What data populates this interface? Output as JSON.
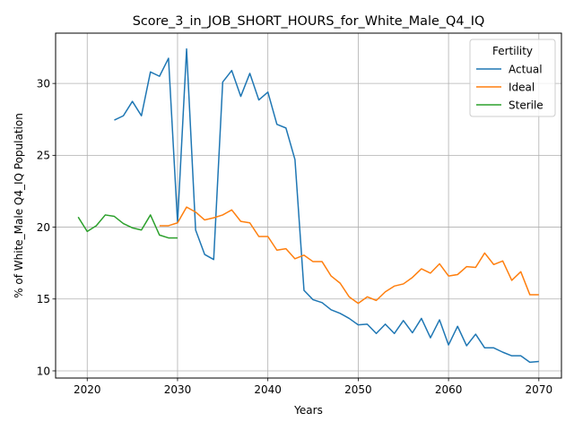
{
  "chart_data": {
    "type": "line",
    "title": "Score_3_in_JOB_SHORT_HOURS_for_White_Male_Q4_IQ",
    "xlabel": "Years",
    "ylabel": "% of White_Male Q4_IQ Population",
    "xlim": [
      2016.5,
      2072.5
    ],
    "ylim": [
      9.5,
      33.5
    ],
    "xticks": [
      2020,
      2030,
      2040,
      2050,
      2060,
      2070
    ],
    "yticks": [
      10,
      15,
      20,
      25,
      30
    ],
    "grid": true,
    "legend": {
      "title": "Fertility",
      "position": "top-right"
    },
    "series": [
      {
        "name": "Actual",
        "color": "#1f77b4",
        "x": [
          2023,
          2024,
          2025,
          2026,
          2027,
          2028,
          2029,
          2030,
          2031,
          2032,
          2033,
          2034,
          2035,
          2036,
          2037,
          2038,
          2039,
          2040,
          2041,
          2042,
          2043,
          2044,
          2045,
          2046,
          2047,
          2048,
          2049,
          2050,
          2051,
          2052,
          2053,
          2054,
          2055,
          2056,
          2057,
          2058,
          2059,
          2060,
          2061,
          2062,
          2063,
          2064,
          2065,
          2066,
          2067,
          2068,
          2069,
          2070
        ],
        "y": [
          27.45,
          27.75,
          28.75,
          27.75,
          30.8,
          30.5,
          31.75,
          20.3,
          32.4,
          19.8,
          18.1,
          17.75,
          30.1,
          30.9,
          29.1,
          30.7,
          28.85,
          29.4,
          27.15,
          26.9,
          24.7,
          15.6,
          14.95,
          14.75,
          14.25,
          14.0,
          13.65,
          13.2,
          13.25,
          12.6,
          13.25,
          12.6,
          13.5,
          12.65,
          13.65,
          12.3,
          13.55,
          11.8,
          13.1,
          11.75,
          12.55,
          11.6,
          11.6,
          11.3,
          11.05,
          11.05,
          10.6,
          10.65
        ]
      },
      {
        "name": "Ideal",
        "color": "#ff7f0e",
        "x": [
          2028,
          2029,
          2030,
          2031,
          2032,
          2033,
          2034,
          2035,
          2036,
          2037,
          2038,
          2039,
          2040,
          2041,
          2042,
          2043,
          2044,
          2045,
          2046,
          2047,
          2048,
          2049,
          2050,
          2051,
          2052,
          2053,
          2054,
          2055,
          2056,
          2057,
          2058,
          2059,
          2060,
          2061,
          2062,
          2063,
          2064,
          2065,
          2066,
          2067,
          2068,
          2069,
          2070
        ],
        "y": [
          20.1,
          20.1,
          20.3,
          21.4,
          21.05,
          20.5,
          20.65,
          20.85,
          21.2,
          20.4,
          20.3,
          19.35,
          19.35,
          18.4,
          18.5,
          17.8,
          18.05,
          17.6,
          17.6,
          16.6,
          16.1,
          15.15,
          14.7,
          15.15,
          14.9,
          15.5,
          15.9,
          16.05,
          16.5,
          17.1,
          16.8,
          17.45,
          16.6,
          16.7,
          17.25,
          17.2,
          18.2,
          17.4,
          17.65,
          16.3,
          16.9,
          15.3,
          15.3
        ]
      },
      {
        "name": "Sterile",
        "color": "#2ca02c",
        "x": [
          2019,
          2020,
          2021,
          2022,
          2023,
          2024,
          2025,
          2026,
          2027,
          2028,
          2029,
          2030
        ],
        "y": [
          20.7,
          19.7,
          20.1,
          20.85,
          20.75,
          20.25,
          19.95,
          19.8,
          20.85,
          19.45,
          19.25,
          19.25
        ]
      }
    ]
  }
}
